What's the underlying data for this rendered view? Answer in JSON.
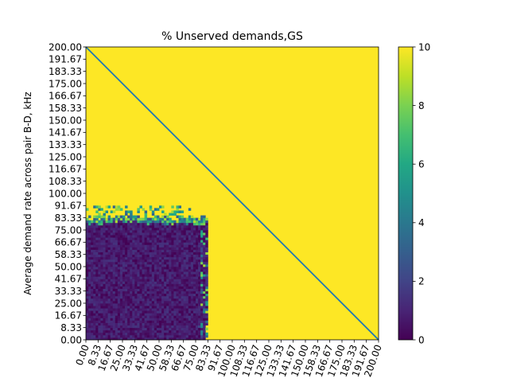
{
  "chart_data": {
    "type": "heatmap",
    "title": "% Unserved demands,GS",
    "ylabel": "Average demand rate across pair B-D, kHz",
    "xlabel": "",
    "xlim": [
      0,
      200
    ],
    "ylim": [
      0,
      200
    ],
    "x_tick_labels": [
      "0.00",
      "8.33",
      "16.67",
      "25.00",
      "33.33",
      "41.67",
      "50.00",
      "58.33",
      "66.67",
      "75.00",
      "83.33",
      "91.67",
      "100.00",
      "108.33",
      "116.67",
      "125.00",
      "133.33",
      "141.67",
      "150.00",
      "158.33",
      "166.67",
      "175.00",
      "183.33",
      "191.67",
      "200.00"
    ],
    "y_tick_labels": [
      "0.00",
      "8.33",
      "16.67",
      "25.00",
      "33.33",
      "41.67",
      "50.00",
      "58.33",
      "66.67",
      "75.00",
      "83.33",
      "91.67",
      "100.00",
      "108.33",
      "116.67",
      "125.00",
      "133.33",
      "141.67",
      "150.00",
      "158.33",
      "166.67",
      "175.00",
      "183.33",
      "191.67",
      "200.00"
    ],
    "colorbar": {
      "min": 0,
      "max": 10,
      "ticks": [
        "0",
        "2",
        "4",
        "6",
        "8",
        "10"
      ],
      "colormap": "viridis"
    },
    "regions": [
      {
        "x_range": [
          0,
          83
        ],
        "y_range": [
          0,
          83
        ],
        "value_range": [
          0,
          1.5
        ],
        "description": "low"
      },
      {
        "boundary_x": [
          0,
          83
        ],
        "boundary_y": [
          83,
          91
        ],
        "value_range": [
          2,
          9
        ]
      },
      {
        "else": true,
        "value": 10
      }
    ],
    "diagonal_line": {
      "from": [
        0,
        200
      ],
      "to": [
        200,
        0
      ],
      "color": "#1f77b4"
    }
  }
}
